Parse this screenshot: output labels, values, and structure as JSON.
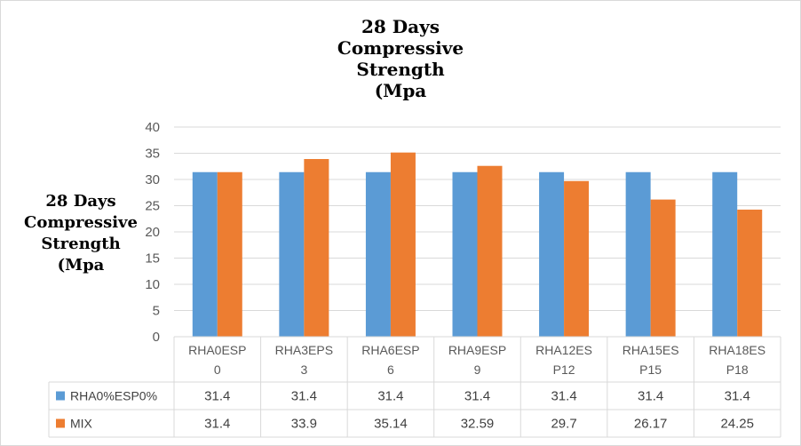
{
  "chart_data": {
    "type": "bar",
    "title_lines": [
      "28 Days",
      "Compressive",
      "Strength",
      "(Mpa"
    ],
    "ylabel_lines": [
      "28 Days",
      "Compressive",
      "Strength",
      "(Mpa"
    ],
    "xlabel": "",
    "ylim": [
      0,
      40
    ],
    "yticks": [
      "0",
      "5",
      "10",
      "15",
      "20",
      "25",
      "30",
      "35",
      "40"
    ],
    "grid": true,
    "legend": "data-table",
    "categories": [
      [
        "RHA0ESP",
        "0"
      ],
      [
        "RHA3EPS",
        "3"
      ],
      [
        "RHA6ESP",
        "6"
      ],
      [
        "RHA9ESP",
        "9"
      ],
      [
        "RHA12ES",
        "P12"
      ],
      [
        "RHA15ES",
        "P15"
      ],
      [
        "RHA18ES",
        "P18"
      ]
    ],
    "series": [
      {
        "name": "RHA0%ESP0%",
        "color": "#5b9bd5",
        "values": [
          31.4,
          31.4,
          31.4,
          31.4,
          31.4,
          31.4,
          31.4
        ],
        "labels": [
          "31.4",
          "31.4",
          "31.4",
          "31.4",
          "31.4",
          "31.4",
          "31.4"
        ]
      },
      {
        "name": "MIX",
        "color": "#ed7d31",
        "values": [
          31.4,
          33.9,
          35.14,
          32.59,
          29.7,
          26.17,
          24.25
        ],
        "labels": [
          "31.4",
          "33.9",
          "35.14",
          "32.59",
          "29.7",
          "26.17",
          "24.25"
        ]
      }
    ]
  }
}
